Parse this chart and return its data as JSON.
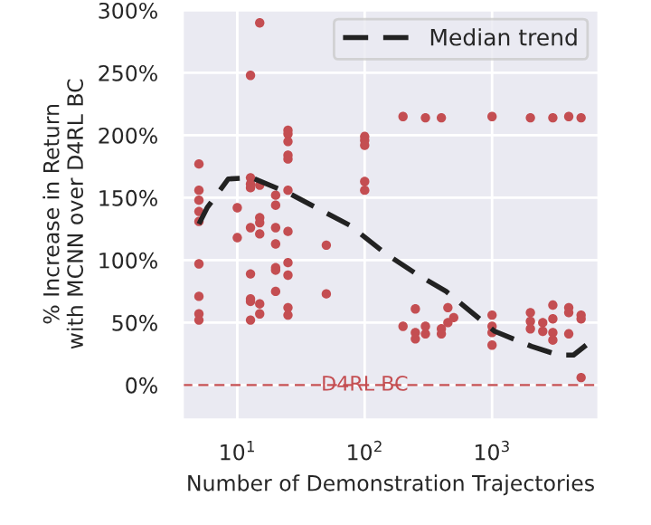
{
  "chart_data": {
    "type": "scatter",
    "xlabel": "Number of Demonstration Trajectories",
    "ylabel": "% Increase in Return\nwith MCNN over D4RL BC",
    "log": "x",
    "grid": true,
    "legend": "top right",
    "marker": "circle",
    "xlim": [
      3.7,
      6900
    ],
    "xticks": [
      {
        "value": 10,
        "label": "10$^{1}$"
      },
      {
        "value": 100,
        "label": "10$^{2}$"
      },
      {
        "value": 1000,
        "label": "10$^{3}$"
      }
    ],
    "ylim": [
      -28,
      302
    ],
    "yticks": [
      {
        "value": 0,
        "label": "0%"
      },
      {
        "value": 50,
        "label": "50%"
      },
      {
        "value": 100,
        "label": "100%"
      },
      {
        "value": 150,
        "label": "150%"
      },
      {
        "value": 200,
        "label": "200%"
      },
      {
        "value": 250,
        "label": "250%"
      },
      {
        "value": 300,
        "label": "300%"
      }
    ],
    "ref_lines": [
      {
        "axis": "y",
        "value": 0,
        "label": "D4RL BC",
        "color": "#c44e52",
        "line_style": "dashed"
      }
    ],
    "series": [
      {
        "color": "#c44e52",
        "x": [
          5,
          5,
          5,
          5,
          5,
          5,
          5,
          5,
          5,
          10,
          10,
          12.7,
          12.7,
          12.7,
          12.7,
          12.7,
          12.7,
          12.7,
          12.7,
          12.7,
          15,
          15,
          15,
          15,
          15,
          15,
          15,
          20,
          20,
          20,
          20,
          20,
          20,
          20,
          25,
          25,
          25,
          25,
          25,
          25,
          25,
          25,
          25,
          25,
          25,
          50,
          50,
          100,
          100,
          100,
          100,
          100,
          200,
          200,
          250,
          250,
          250,
          300,
          300,
          300,
          400,
          400,
          400,
          450,
          450,
          500,
          1000,
          1000,
          1000,
          1000,
          1000,
          2000,
          2000,
          2000,
          2000,
          2500,
          2500,
          3000,
          3000,
          3000,
          3000,
          3000,
          4000,
          4000,
          4000,
          4000,
          5000,
          5000,
          5000,
          5000
        ],
        "values": [
          177,
          156,
          148,
          139,
          131,
          97,
          71,
          57,
          52,
          142,
          118,
          248,
          166,
          161,
          158,
          126,
          89,
          69,
          67,
          52,
          290,
          160,
          134,
          130,
          121,
          65,
          57,
          152,
          144,
          126,
          113,
          92,
          94,
          75,
          201,
          204,
          195,
          184,
          181,
          156,
          123,
          98,
          88,
          62,
          56,
          112,
          73,
          199,
          196,
          192,
          163,
          156,
          215,
          47,
          61,
          42,
          37,
          214,
          47,
          41,
          214,
          45,
          41,
          62,
          50,
          54,
          215,
          56,
          47,
          42,
          32,
          214,
          58,
          51,
          45,
          50,
          43,
          214,
          64,
          53,
          42,
          36,
          215,
          62,
          58,
          41,
          214,
          56,
          53,
          6
        ]
      },
      {
        "type": "line",
        "name": "Median trend",
        "color": "#222222",
        "line_style": "dashed",
        "marker": "none",
        "x": [
          5,
          5.8,
          8.5,
          13,
          25,
          76,
          147,
          254,
          436,
          1050,
          2040,
          3330,
          4360,
          5480
        ],
        "values": [
          129,
          142,
          165,
          166,
          154,
          128,
          105,
          89,
          75,
          43,
          31,
          24,
          24,
          32
        ]
      }
    ]
  }
}
